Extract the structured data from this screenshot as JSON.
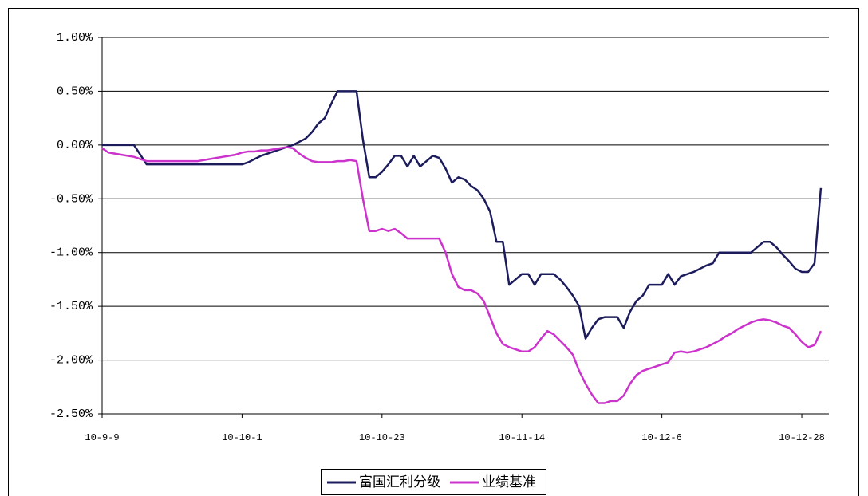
{
  "chart_data": {
    "type": "line",
    "categories": [
      "10-9-9",
      null,
      null,
      null,
      null,
      null,
      null,
      null,
      null,
      null,
      null,
      null,
      null,
      null,
      null,
      null,
      null,
      null,
      null,
      null,
      null,
      null,
      "10-10-1",
      null,
      null,
      null,
      null,
      null,
      null,
      null,
      null,
      null,
      null,
      null,
      null,
      null,
      null,
      null,
      null,
      null,
      null,
      null,
      null,
      null,
      "10-10-23",
      null,
      null,
      null,
      null,
      null,
      null,
      null,
      null,
      null,
      null,
      null,
      null,
      null,
      null,
      null,
      null,
      null,
      null,
      null,
      null,
      null,
      "10-11-14",
      null,
      null,
      null,
      null,
      null,
      null,
      null,
      null,
      null,
      null,
      null,
      null,
      null,
      null,
      null,
      null,
      null,
      null,
      null,
      null,
      null,
      "10-12-6",
      null,
      null,
      null,
      null,
      null,
      null,
      null,
      null,
      null,
      null,
      null,
      null,
      null,
      null,
      null,
      null,
      null,
      null,
      null,
      null,
      null,
      "10-12-28",
      null,
      null,
      null
    ],
    "series": [
      {
        "name": "富国汇利分级",
        "color": "#1c1c5c",
        "values": [
          0,
          0,
          0,
          0,
          0,
          0,
          -0.09,
          -0.18,
          -0.18,
          -0.18,
          -0.18,
          -0.18,
          -0.18,
          -0.18,
          -0.18,
          -0.18,
          -0.18,
          -0.18,
          -0.18,
          -0.18,
          -0.18,
          -0.18,
          -0.18,
          -0.16,
          -0.13,
          -0.1,
          -0.08,
          -0.06,
          -0.04,
          -0.02,
          0.0,
          0.03,
          0.06,
          0.12,
          0.2,
          0.25,
          0.38,
          0.5,
          0.5,
          0.5,
          0.5,
          0.05,
          -0.3,
          -0.3,
          -0.25,
          -0.18,
          -0.1,
          -0.1,
          -0.2,
          -0.1,
          -0.2,
          -0.15,
          -0.1,
          -0.12,
          -0.22,
          -0.35,
          -0.3,
          -0.32,
          -0.38,
          -0.42,
          -0.5,
          -0.62,
          -0.9,
          -0.9,
          -1.3,
          -1.25,
          -1.2,
          -1.2,
          -1.3,
          -1.2,
          -1.2,
          -1.2,
          -1.25,
          -1.32,
          -1.4,
          -1.5,
          -1.8,
          -1.7,
          -1.62,
          -1.6,
          -1.6,
          -1.6,
          -1.7,
          -1.55,
          -1.45,
          -1.4,
          -1.3,
          -1.3,
          -1.3,
          -1.2,
          -1.3,
          -1.22,
          -1.2,
          -1.18,
          -1.15,
          -1.12,
          -1.1,
          -1.0,
          -1.0,
          -1.0,
          -1.0,
          -1.0,
          -1.0,
          -0.95,
          -0.9,
          -0.9,
          -0.95,
          -1.02,
          -1.08,
          -1.15,
          -1.18,
          -1.18,
          -1.1,
          -0.4
        ]
      },
      {
        "name": "业绩基准",
        "color": "#cc33cc",
        "values": [
          -0.03,
          -0.07,
          -0.08,
          -0.09,
          -0.1,
          -0.11,
          -0.13,
          -0.15,
          -0.15,
          -0.15,
          -0.15,
          -0.15,
          -0.15,
          -0.15,
          -0.15,
          -0.15,
          -0.14,
          -0.13,
          -0.12,
          -0.11,
          -0.1,
          -0.09,
          -0.07,
          -0.06,
          -0.06,
          -0.05,
          -0.05,
          -0.04,
          -0.03,
          -0.02,
          -0.03,
          -0.08,
          -0.12,
          -0.15,
          -0.16,
          -0.16,
          -0.16,
          -0.15,
          -0.15,
          -0.14,
          -0.15,
          -0.5,
          -0.8,
          -0.8,
          -0.78,
          -0.8,
          -0.78,
          -0.82,
          -0.87,
          -0.87,
          -0.87,
          -0.87,
          -0.87,
          -0.87,
          -1.0,
          -1.2,
          -1.32,
          -1.35,
          -1.35,
          -1.38,
          -1.45,
          -1.6,
          -1.75,
          -1.85,
          -1.88,
          -1.9,
          -1.92,
          -1.92,
          -1.88,
          -1.8,
          -1.73,
          -1.76,
          -1.82,
          -1.88,
          -1.95,
          -2.1,
          -2.22,
          -2.32,
          -2.4,
          -2.4,
          -2.38,
          -2.38,
          -2.33,
          -2.22,
          -2.14,
          -2.1,
          -2.08,
          -2.06,
          -2.04,
          -2.02,
          -1.93,
          -1.92,
          -1.93,
          -1.92,
          -1.9,
          -1.88,
          -1.85,
          -1.82,
          -1.78,
          -1.75,
          -1.71,
          -1.68,
          -1.65,
          -1.63,
          -1.62,
          -1.63,
          -1.65,
          -1.68,
          -1.7,
          -1.76,
          -1.83,
          -1.88,
          -1.86,
          -1.73
        ]
      }
    ],
    "ylim": [
      -2.5,
      1
    ],
    "yticks": [
      {
        "value": -2.5,
        "label": "-2.50%"
      },
      {
        "value": -2,
        "label": "-2.00%"
      },
      {
        "value": -1.5,
        "label": "-1.50%"
      },
      {
        "value": -1,
        "label": "-1.00%"
      },
      {
        "value": -0.5,
        "label": "-0.50%"
      },
      {
        "value": 0,
        "label": "0.00%"
      },
      {
        "value": 0.5,
        "label": "0.50%"
      },
      {
        "value": 1,
        "label": "1.00%"
      }
    ],
    "grid": true,
    "legend": "bottom"
  }
}
